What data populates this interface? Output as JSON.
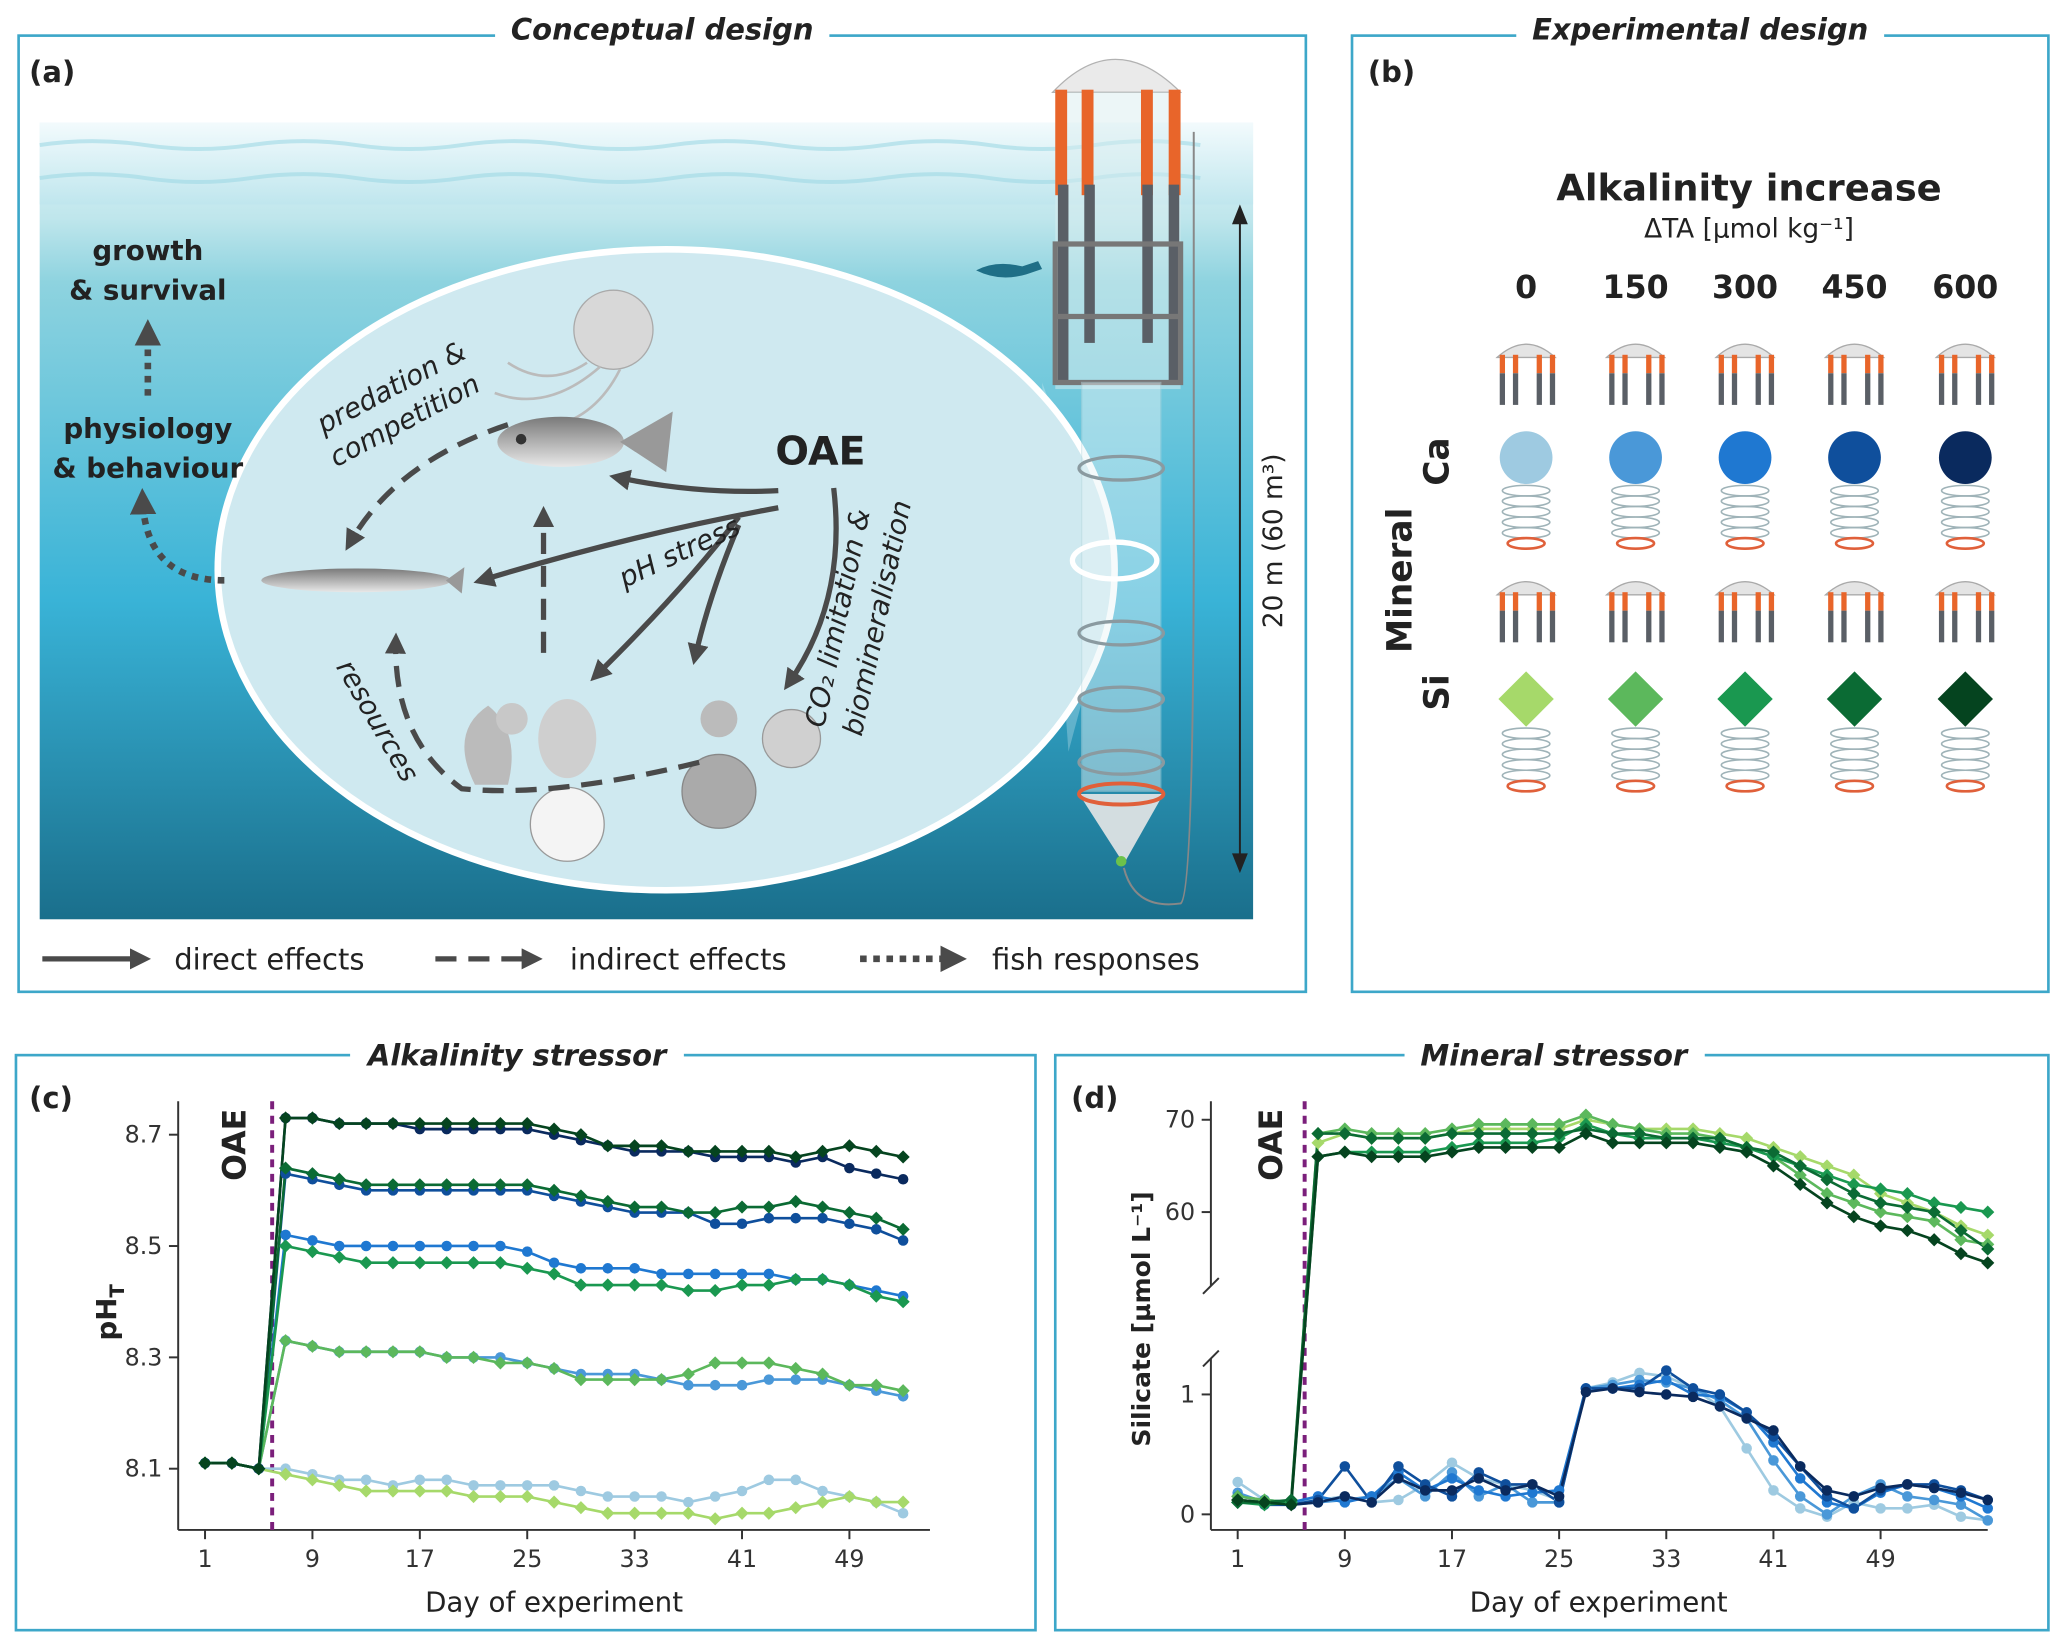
{
  "panel_a": {
    "label": "(a)",
    "title": "Conceptual design",
    "growth": [
      "growth",
      "& survival"
    ],
    "physiology": [
      "physiology",
      "& behaviour"
    ],
    "predation": [
      "predation &",
      "competition"
    ],
    "oae": "OAE",
    "ph_stress": "pH stress",
    "co2": [
      "CO₂ limitation &",
      "biomineralisation"
    ],
    "resources": "resources",
    "depth": "20 m  (60 m³)",
    "legend": [
      "direct effects",
      "indirect effects",
      "fish responses"
    ]
  },
  "panel_b": {
    "label": "(b)",
    "title": "Experimental design",
    "heading": "Alkalinity increase",
    "unit": "ΔTA [µmol kg⁻¹]",
    "levels": [
      0,
      150,
      300,
      450,
      600
    ],
    "mineral": "Mineral",
    "minerals": [
      "Ca",
      "Si"
    ]
  },
  "chart_data": [
    {
      "type": "line",
      "label": "(c)",
      "title": "Alkalinity stressor",
      "xlabel": "Day of experiment",
      "ylabel": {
        "text": "pH",
        "sub": "T"
      },
      "x": [
        1,
        3,
        5,
        7,
        9,
        11,
        13,
        15,
        17,
        19,
        21,
        23,
        25,
        27,
        29,
        31,
        33,
        35,
        37,
        39,
        41,
        43,
        45,
        47,
        49,
        51,
        53
      ],
      "xlim": [
        -1,
        55
      ],
      "xticks": [
        1,
        9,
        17,
        25,
        33,
        41,
        49
      ],
      "ylim": [
        7.99,
        8.76
      ],
      "yticks": [
        8.1,
        8.3,
        8.5,
        8.7
      ],
      "annotations": [
        {
          "text": "OAE",
          "x": 6
        }
      ],
      "series": [
        {
          "color": "#9ecae1",
          "marker": "circle",
          "values": [
            8.11,
            8.11,
            8.1,
            8.1,
            8.09,
            8.08,
            8.08,
            8.07,
            8.08,
            8.08,
            8.07,
            8.07,
            8.07,
            8.07,
            8.06,
            8.05,
            8.05,
            8.05,
            8.04,
            8.05,
            8.06,
            8.08,
            8.08,
            8.06,
            8.05,
            8.04,
            8.02
          ]
        },
        {
          "color": "#4a98d8",
          "marker": "circle",
          "values": [
            8.11,
            8.11,
            8.1,
            8.33,
            8.32,
            8.31,
            8.31,
            8.31,
            8.31,
            8.3,
            8.3,
            8.3,
            8.29,
            8.28,
            8.27,
            8.27,
            8.27,
            8.26,
            8.25,
            8.25,
            8.25,
            8.26,
            8.26,
            8.26,
            8.25,
            8.24,
            8.23
          ]
        },
        {
          "color": "#1f78d1",
          "marker": "circle",
          "values": [
            8.11,
            8.11,
            8.1,
            8.52,
            8.51,
            8.5,
            8.5,
            8.5,
            8.5,
            8.5,
            8.5,
            8.5,
            8.49,
            8.47,
            8.46,
            8.46,
            8.46,
            8.45,
            8.45,
            8.45,
            8.45,
            8.45,
            8.44,
            8.44,
            8.43,
            8.42,
            8.41
          ]
        },
        {
          "color": "#0f4f9c",
          "marker": "circle",
          "values": [
            8.11,
            8.11,
            8.1,
            8.63,
            8.62,
            8.61,
            8.6,
            8.6,
            8.6,
            8.6,
            8.6,
            8.6,
            8.6,
            8.59,
            8.58,
            8.57,
            8.56,
            8.56,
            8.56,
            8.54,
            8.54,
            8.55,
            8.55,
            8.55,
            8.54,
            8.53,
            8.51
          ]
        },
        {
          "color": "#0a2a5e",
          "marker": "circle",
          "values": [
            8.11,
            8.11,
            8.1,
            8.73,
            8.73,
            8.72,
            8.72,
            8.72,
            8.71,
            8.71,
            8.71,
            8.71,
            8.71,
            8.7,
            8.69,
            8.68,
            8.67,
            8.67,
            8.67,
            8.66,
            8.66,
            8.66,
            8.65,
            8.66,
            8.64,
            8.63,
            8.62
          ]
        },
        {
          "color": "#a6d96a",
          "marker": "diamond",
          "values": [
            8.11,
            8.11,
            8.1,
            8.09,
            8.08,
            8.07,
            8.06,
            8.06,
            8.06,
            8.06,
            8.05,
            8.05,
            8.05,
            8.04,
            8.03,
            8.02,
            8.02,
            8.02,
            8.02,
            8.01,
            8.02,
            8.02,
            8.03,
            8.04,
            8.05,
            8.04,
            8.04
          ]
        },
        {
          "color": "#5cb85c",
          "marker": "diamond",
          "values": [
            8.11,
            8.11,
            8.1,
            8.33,
            8.32,
            8.31,
            8.31,
            8.31,
            8.31,
            8.3,
            8.3,
            8.29,
            8.29,
            8.28,
            8.26,
            8.26,
            8.26,
            8.26,
            8.27,
            8.29,
            8.29,
            8.29,
            8.28,
            8.27,
            8.25,
            8.25,
            8.24
          ]
        },
        {
          "color": "#1a9850",
          "marker": "diamond",
          "values": [
            8.11,
            8.11,
            8.1,
            8.5,
            8.49,
            8.48,
            8.47,
            8.47,
            8.47,
            8.47,
            8.47,
            8.47,
            8.46,
            8.45,
            8.43,
            8.43,
            8.43,
            8.43,
            8.42,
            8.42,
            8.43,
            8.43,
            8.44,
            8.44,
            8.43,
            8.41,
            8.4
          ]
        },
        {
          "color": "#0b6b34",
          "marker": "diamond",
          "values": [
            8.11,
            8.11,
            8.1,
            8.64,
            8.63,
            8.62,
            8.61,
            8.61,
            8.61,
            8.61,
            8.61,
            8.61,
            8.61,
            8.6,
            8.59,
            8.58,
            8.57,
            8.57,
            8.56,
            8.56,
            8.57,
            8.57,
            8.58,
            8.57,
            8.56,
            8.55,
            8.53
          ]
        },
        {
          "color": "#05441f",
          "marker": "diamond",
          "values": [
            8.11,
            8.11,
            8.1,
            8.73,
            8.73,
            8.72,
            8.72,
            8.72,
            8.72,
            8.72,
            8.72,
            8.72,
            8.72,
            8.71,
            8.7,
            8.68,
            8.68,
            8.68,
            8.67,
            8.67,
            8.67,
            8.67,
            8.66,
            8.67,
            8.68,
            8.67,
            8.66
          ]
        }
      ]
    },
    {
      "type": "line",
      "label": "(d)",
      "title": "Mineral stressor",
      "xlabel": "Day of experiment",
      "ylabel": "Silicate [µmol L⁻¹]",
      "x": [
        1,
        3,
        5,
        7,
        9,
        11,
        13,
        15,
        17,
        19,
        21,
        23,
        25,
        27,
        29,
        31,
        33,
        35,
        37,
        39,
        41,
        43,
        45,
        47,
        49,
        51,
        53,
        55,
        57
      ],
      "xlim": [
        -1,
        57
      ],
      "xticks": [
        1,
        9,
        17,
        25,
        33,
        41,
        49
      ],
      "ylim": [
        -0.13,
        1.3
      ],
      "yticks": [
        0,
        1
      ],
      "y2lim": [
        52,
        72
      ],
      "y2ticks": [
        60,
        70
      ],
      "broken_axis": true,
      "annotations": [
        {
          "text": "OAE",
          "x": 6
        }
      ],
      "series": [
        {
          "color": "#9ecae1",
          "marker": "circle",
          "values": [
            0.27,
            0.12,
            0.1,
            0.12,
            0.15,
            0.1,
            0.12,
            0.25,
            0.43,
            0.3,
            0.25,
            0.2,
            0.12,
            1.05,
            1.1,
            1.18,
            1.15,
            1.05,
            0.9,
            0.55,
            0.2,
            0.05,
            -0.02,
            0.1,
            0.05,
            0.05,
            0.08,
            -0.02,
            -0.05
          ]
        },
        {
          "color": "#4a98d8",
          "marker": "circle",
          "values": [
            0.18,
            0.1,
            0.08,
            0.1,
            0.12,
            0.15,
            0.3,
            0.15,
            0.35,
            0.15,
            0.25,
            0.1,
            0.1,
            1.05,
            1.08,
            1.12,
            1.1,
            1.05,
            0.95,
            0.8,
            0.45,
            0.15,
            0.0,
            0.15,
            0.25,
            0.15,
            0.12,
            0.08,
            -0.05
          ]
        },
        {
          "color": "#1f78d1",
          "marker": "circle",
          "values": [
            0.15,
            0.12,
            0.1,
            0.15,
            0.1,
            0.15,
            0.35,
            0.2,
            0.3,
            0.2,
            0.15,
            0.18,
            0.2,
            1.05,
            1.05,
            1.08,
            1.12,
            1.0,
            0.98,
            0.85,
            0.6,
            0.3,
            0.1,
            0.05,
            0.18,
            0.25,
            0.22,
            0.15,
            0.05
          ]
        },
        {
          "color": "#0f4f9c",
          "marker": "circle",
          "values": [
            0.12,
            0.08,
            0.08,
            0.12,
            0.4,
            0.1,
            0.4,
            0.25,
            0.15,
            0.35,
            0.25,
            0.25,
            0.1,
            1.05,
            1.05,
            1.05,
            1.2,
            1.05,
            1.0,
            0.85,
            0.65,
            0.4,
            0.15,
            0.05,
            0.2,
            0.25,
            0.25,
            0.2,
            0.12
          ]
        },
        {
          "color": "#0a2a5e",
          "marker": "circle",
          "values": [
            0.12,
            0.1,
            0.08,
            0.1,
            0.15,
            0.1,
            0.3,
            0.2,
            0.2,
            0.3,
            0.2,
            0.25,
            0.15,
            1.02,
            1.05,
            1.02,
            1.0,
            0.98,
            0.9,
            0.8,
            0.7,
            0.4,
            0.2,
            0.15,
            0.22,
            0.25,
            0.22,
            0.18,
            0.12
          ]
        },
        {
          "color": "#a6d96a",
          "marker": "diamond",
          "values": [
            0.12,
            0.1,
            0.1,
            67.5,
            68.5,
            68,
            68,
            68,
            68.5,
            69,
            69,
            69,
            69,
            70,
            69.5,
            69,
            69,
            69,
            68.5,
            68,
            67,
            66,
            65,
            64,
            62,
            61,
            60,
            58.5,
            57.5
          ]
        },
        {
          "color": "#5cb85c",
          "marker": "diamond",
          "values": [
            0.15,
            0.12,
            0.1,
            68.5,
            69,
            68.5,
            68.5,
            68.5,
            69,
            69.5,
            69.5,
            69.5,
            69.5,
            70.5,
            69.5,
            69,
            68.5,
            68.5,
            68,
            67,
            66,
            64,
            62,
            61,
            60,
            59.5,
            59,
            57,
            56.5
          ]
        },
        {
          "color": "#1a9850",
          "marker": "diamond",
          "values": [
            0.1,
            0.08,
            0.1,
            66,
            66.5,
            66.5,
            66.5,
            66.5,
            67,
            67.5,
            67.5,
            67.5,
            68,
            69.5,
            68.5,
            68,
            68,
            68,
            67.5,
            67,
            66,
            65,
            64,
            63,
            62.5,
            62,
            61,
            60.5,
            60
          ]
        },
        {
          "color": "#0b6b34",
          "marker": "diamond",
          "values": [
            0.1,
            0.1,
            0.12,
            68.5,
            68.5,
            68,
            68,
            68,
            68.5,
            68.5,
            68.5,
            68.5,
            68.5,
            69,
            68.5,
            68.5,
            68,
            68,
            68,
            67,
            66.5,
            65,
            63.5,
            62,
            61,
            60.5,
            60,
            58,
            56
          ]
        },
        {
          "color": "#05441f",
          "marker": "diamond",
          "values": [
            0.12,
            0.1,
            0.08,
            66,
            66.5,
            66,
            66,
            66,
            66.5,
            67,
            67,
            67,
            67,
            68.5,
            67.5,
            67.5,
            67.5,
            67.5,
            67,
            66.5,
            65,
            63,
            61,
            59.5,
            58.5,
            58,
            57,
            55.5,
            54.5
          ]
        }
      ]
    }
  ]
}
